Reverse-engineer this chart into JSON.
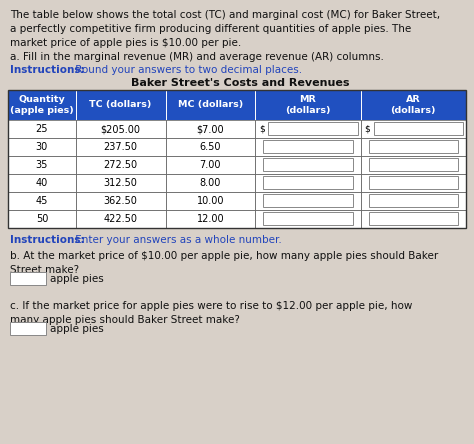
{
  "title_text": "The table below shows the total cost (TC) and marginal cost (MC) for Baker Street,\na perfectly competitive firm producing different quantities of apple pies. The\nmarket price of apple pies is $10.00 per pie.",
  "part_a": "a. Fill in the marginal revenue (MR) and average revenue (AR) columns.",
  "instr1_bold": "Instructions:",
  "instr1_rest": " Round your answers to two decimal places.",
  "table_title": "Baker Street's Costs and Revenues",
  "col_headers": [
    "Quantity\n(apple pies)",
    "TC (dollars)",
    "MC (dollars)",
    "MR\n(dollars)",
    "AR\n(dollars)"
  ],
  "rows": [
    [
      "25",
      "$205.00",
      "$7.00",
      "",
      ""
    ],
    [
      "30",
      "237.50",
      "6.50",
      "",
      ""
    ],
    [
      "35",
      "272.50",
      "7.00",
      "",
      ""
    ],
    [
      "40",
      "312.50",
      "8.00",
      "",
      ""
    ],
    [
      "45",
      "362.50",
      "10.00",
      "",
      ""
    ],
    [
      "50",
      "422.50",
      "12.00",
      "",
      ""
    ]
  ],
  "instr2_bold": "Instructions:",
  "instr2_rest": " Enter your answers as a whole number.",
  "part_b": "b. At the market price of $10.00 per apple pie, how many apple pies should Baker\nStreet make?",
  "part_c": "c. If the market price for apple pies were to rise to $12.00 per apple pie, how\nmany apple pies should Baker Street make?",
  "apple_pies_label": "apple pies",
  "header_bg": "#2050c0",
  "header_fg": "#ffffff",
  "instr_color": "#2244bb",
  "fig_bg": "#d8d0c8",
  "text_color": "#111111",
  "cell_bg": "#ffffff",
  "border_color": "#555555",
  "input_box_color": "#cccccc"
}
